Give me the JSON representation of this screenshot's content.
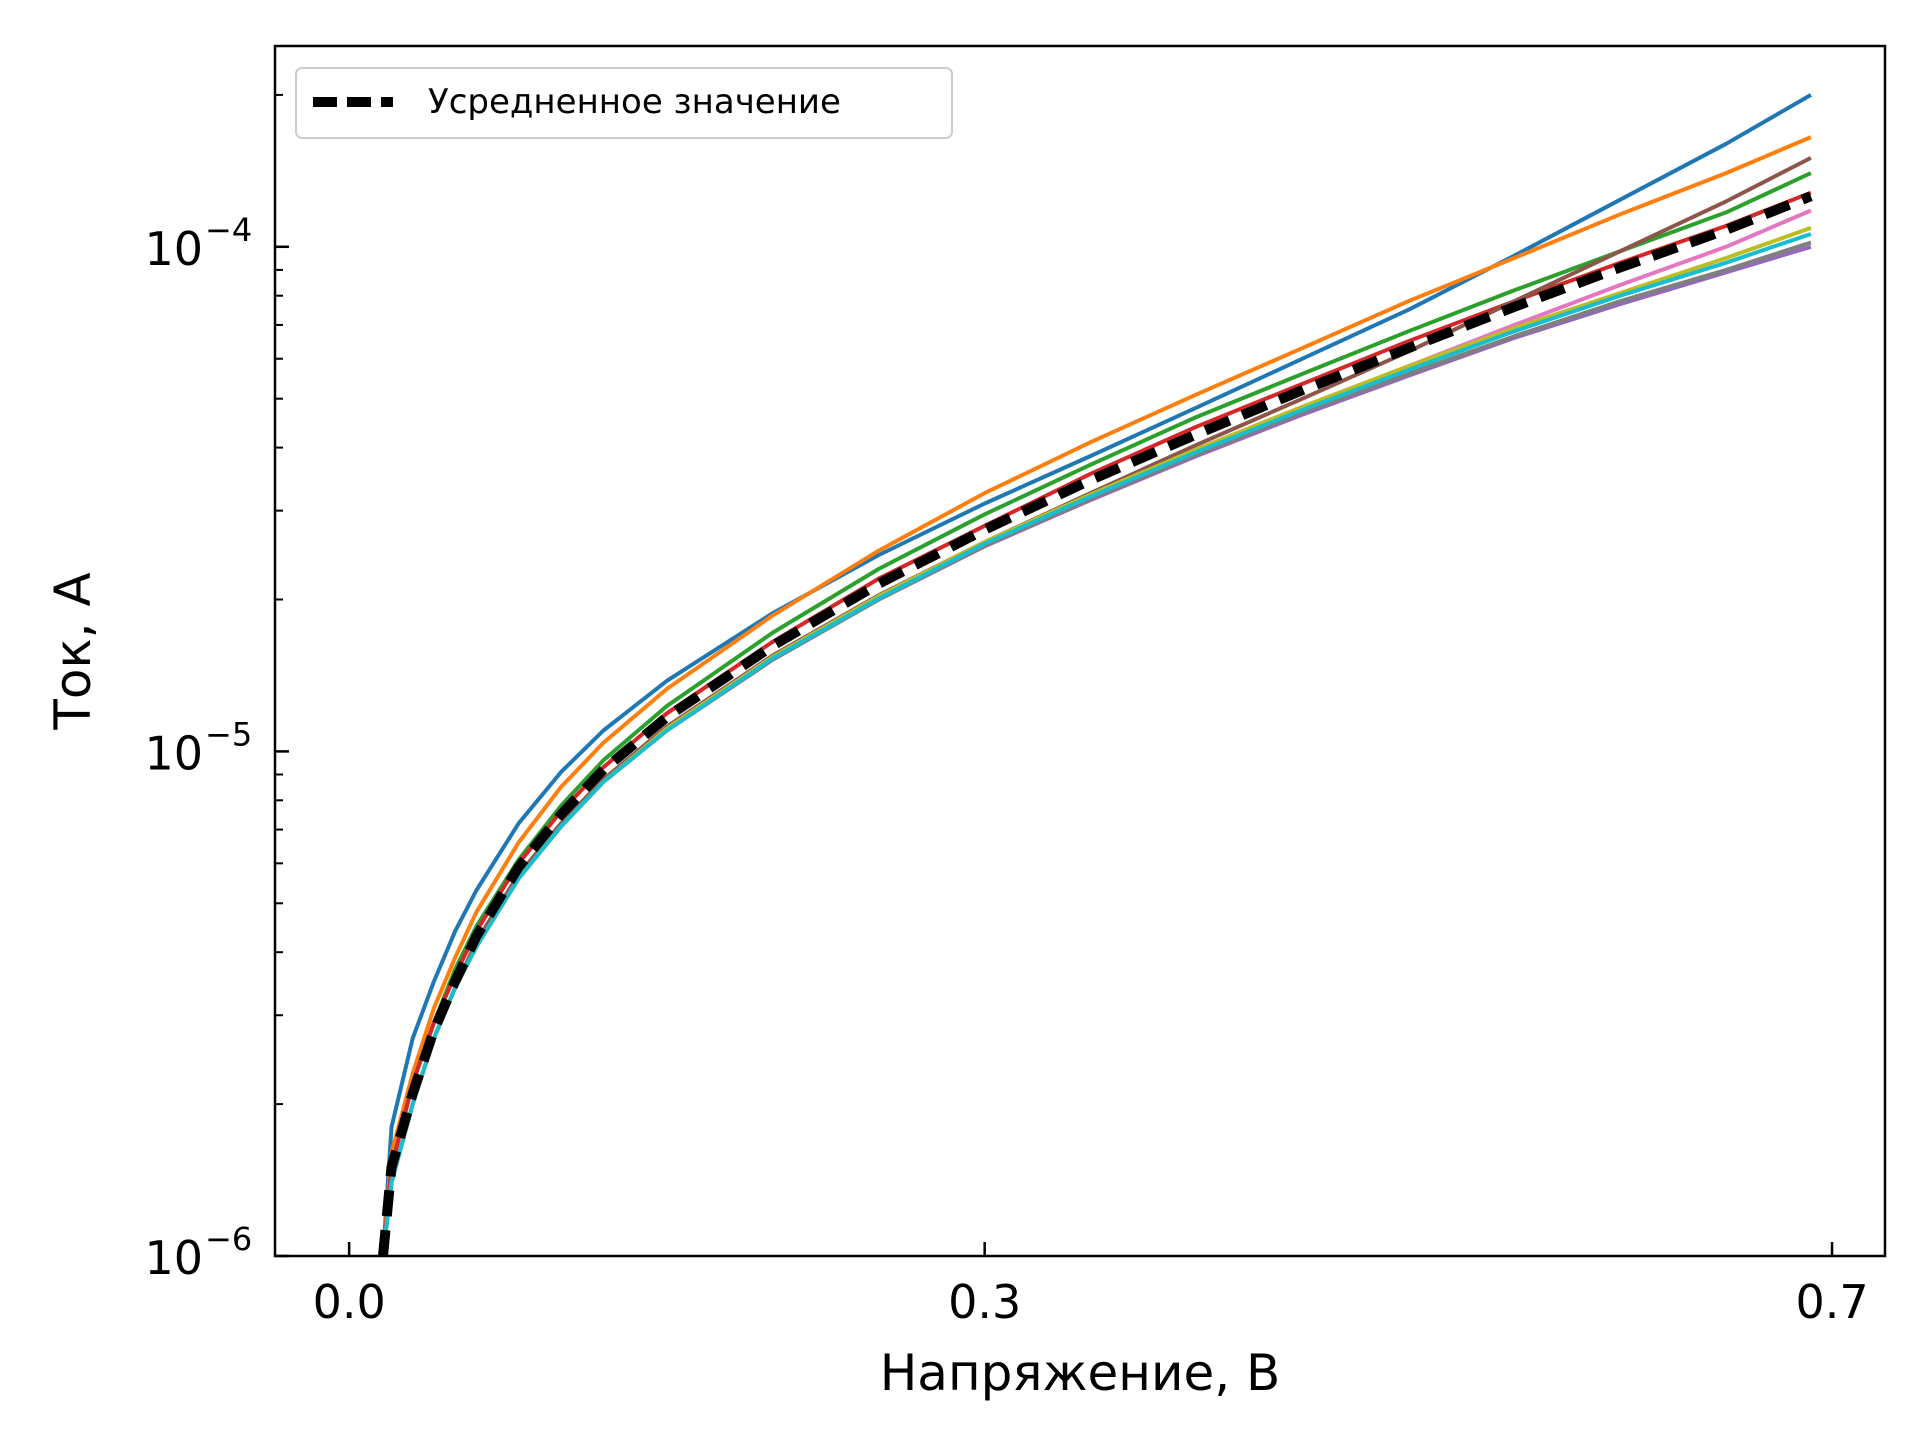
{
  "chart_data": {
    "type": "line",
    "xlabel": "Напряжение, В",
    "ylabel": "Ток, А",
    "xlim": [
      -0.035,
      0.725
    ],
    "ylim": [
      1e-06,
      0.00025
    ],
    "yscale": "log",
    "grid": false,
    "legend_position": "top-left",
    "x_ticks": [
      {
        "value": 0.0,
        "label": "0.0"
      },
      {
        "value": 0.3,
        "label": "0.3"
      },
      {
        "value": 0.7,
        "label": "0.7"
      }
    ],
    "y_ticks": [
      {
        "value": 1e-06,
        "base": "10",
        "exp": "−6"
      },
      {
        "value": 1e-05,
        "base": "10",
        "exp": "−5"
      },
      {
        "value": 0.0001,
        "base": "10",
        "exp": "−4"
      }
    ],
    "x": [
      0.016,
      0.02,
      0.03,
      0.04,
      0.05,
      0.06,
      0.08,
      0.1,
      0.12,
      0.15,
      0.2,
      0.25,
      0.3,
      0.35,
      0.4,
      0.45,
      0.5,
      0.55,
      0.6,
      0.65,
      0.69
    ],
    "series": [
      {
        "color": "#1f77b4",
        "values": [
          1e-06,
          1.8e-06,
          2.7e-06,
          3.5e-06,
          4.4e-06,
          5.3e-06,
          7.2e-06,
          9.1e-06,
          1.1e-05,
          1.38e-05,
          1.88e-05,
          2.45e-05,
          3.1e-05,
          3.85e-05,
          4.8e-05,
          6e-05,
          7.5e-05,
          9.6e-05,
          0.000124,
          0.00016,
          0.0002
        ]
      },
      {
        "color": "#ff7f0e",
        "values": [
          1e-06,
          1.6e-06,
          2.3e-06,
          3.1e-06,
          3.9e-06,
          4.8e-06,
          6.6e-06,
          8.5e-06,
          1.04e-05,
          1.33e-05,
          1.86e-05,
          2.5e-05,
          3.25e-05,
          4.1e-05,
          5.1e-05,
          6.3e-05,
          7.8e-05,
          9.5e-05,
          0.000116,
          0.00014,
          0.000165
        ]
      },
      {
        "color": "#2ca02c",
        "values": [
          1e-06,
          1.5e-06,
          2.2e-06,
          2.9e-06,
          3.7e-06,
          4.5e-06,
          6.1e-06,
          7.8e-06,
          9.6e-06,
          1.23e-05,
          1.72e-05,
          2.3e-05,
          2.95e-05,
          3.7e-05,
          4.6e-05,
          5.6e-05,
          6.8e-05,
          8.2e-05,
          9.8e-05,
          0.000117,
          0.00014
        ]
      },
      {
        "color": "#d62728",
        "values": [
          1e-06,
          1.5e-06,
          2.2e-06,
          2.9e-06,
          3.6e-06,
          4.4e-06,
          6e-06,
          7.6e-06,
          9.3e-06,
          1.19e-05,
          1.65e-05,
          2.2e-05,
          2.8e-05,
          3.55e-05,
          4.4e-05,
          5.35e-05,
          6.5e-05,
          7.8e-05,
          9.3e-05,
          0.00011,
          0.000128
        ]
      },
      {
        "color": "#9467bd",
        "values": [
          1e-06,
          1.4e-06,
          2e-06,
          2.7e-06,
          3.4e-06,
          4.1e-06,
          5.6e-06,
          7.1e-06,
          8.7e-06,
          1.1e-05,
          1.52e-05,
          2e-05,
          2.55e-05,
          3.15e-05,
          3.85e-05,
          4.65e-05,
          5.55e-05,
          6.6e-05,
          7.7e-05,
          8.9e-05,
          0.0001
        ]
      },
      {
        "color": "#8c564b",
        "values": [
          1e-06,
          1.4e-06,
          2e-06,
          2.7e-06,
          3.4e-06,
          4.2e-06,
          5.7e-06,
          7.2e-06,
          8.8e-06,
          1.12e-05,
          1.55e-05,
          2.04e-05,
          2.6e-05,
          3.25e-05,
          4.05e-05,
          5e-05,
          6.2e-05,
          7.8e-05,
          9.8e-05,
          0.000123,
          0.00015
        ]
      },
      {
        "color": "#e377c2",
        "values": [
          1e-06,
          1.4e-06,
          2e-06,
          2.7e-06,
          3.4e-06,
          4.1e-06,
          5.6e-06,
          7.1e-06,
          8.7e-06,
          1.11e-05,
          1.54e-05,
          2.03e-05,
          2.6e-05,
          3.22e-05,
          3.95e-05,
          4.8e-05,
          5.8e-05,
          7e-05,
          8.4e-05,
          0.0001,
          0.000118
        ]
      },
      {
        "color": "#7f7f7f",
        "values": [
          1e-06,
          1.4e-06,
          2e-06,
          2.7e-06,
          3.4e-06,
          4.1e-06,
          5.6e-06,
          7.1e-06,
          8.7e-06,
          1.1e-05,
          1.52e-05,
          2e-05,
          2.56e-05,
          3.17e-05,
          3.88e-05,
          4.7e-05,
          5.6e-05,
          6.65e-05,
          7.8e-05,
          9e-05,
          0.000102
        ]
      },
      {
        "color": "#bcbd22",
        "values": [
          1e-06,
          1.4e-06,
          2e-06,
          2.7e-06,
          3.4e-06,
          4.1e-06,
          5.6e-06,
          7.1e-06,
          8.7e-06,
          1.11e-05,
          1.54e-05,
          2.03e-05,
          2.6e-05,
          3.23e-05,
          3.97e-05,
          4.82e-05,
          5.8e-05,
          6.9e-05,
          8.1e-05,
          9.5e-05,
          0.000109
        ]
      },
      {
        "color": "#17becf",
        "values": [
          1e-06,
          1.4e-06,
          2e-06,
          2.7e-06,
          3.4e-06,
          4.1e-06,
          5.6e-06,
          7.1e-06,
          8.7e-06,
          1.1e-05,
          1.53e-05,
          2.01e-05,
          2.58e-05,
          3.2e-05,
          3.92e-05,
          4.75e-05,
          5.7e-05,
          6.8e-05,
          8e-05,
          9.3e-05,
          0.000106
        ]
      },
      {
        "name": "Усредненное значение",
        "color": "#000000",
        "dashed": true,
        "values": [
          1e-06,
          1.5e-06,
          2.1e-06,
          2.8e-06,
          3.5e-06,
          4.3e-06,
          5.9e-06,
          7.5e-06,
          9.2e-06,
          1.17e-05,
          1.62e-05,
          2.15e-05,
          2.75e-05,
          3.45e-05,
          4.25e-05,
          5.2e-05,
          6.3e-05,
          7.6e-05,
          9.1e-05,
          0.000108,
          0.000126
        ]
      }
    ]
  }
}
